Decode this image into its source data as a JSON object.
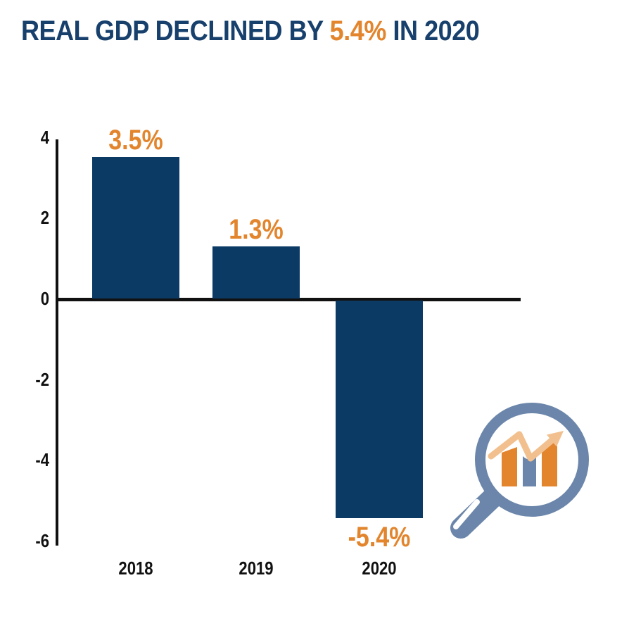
{
  "title": {
    "prefix": "REAL GDP DECLINED BY ",
    "highlight": "5.4%",
    "suffix": " IN 2020"
  },
  "chart_data": {
    "type": "bar",
    "title": "REAL GDP DECLINED BY 5.4% IN 2020",
    "categories": [
      "2018",
      "2019",
      "2020"
    ],
    "values": [
      3.5,
      1.3,
      -5.4
    ],
    "value_labels": [
      "3.5%",
      "1.3%",
      "-5.4%"
    ],
    "xlabel": "",
    "ylabel": "",
    "yticks": [
      4,
      2,
      0,
      -2,
      -4,
      -6
    ],
    "ylim": [
      -6,
      4
    ],
    "grid": false,
    "legend": false,
    "bar_color": "#0b3a64",
    "value_label_color": "#e2852d",
    "axis_color": "#111111"
  },
  "icon": {
    "name": "magnifier-trend-chart-icon",
    "ring_color": "#6b86aa",
    "bar_orange": "#e2852d",
    "bar_blue": "#6b86aa",
    "trend_line_color": "#f2c08e"
  },
  "colors": {
    "title_navy": "#17406c",
    "bar_navy": "#0b3a64",
    "orange": "#e2852d",
    "peach": "#f2c08e",
    "slate_blue": "#6b86aa",
    "axis_black": "#111111"
  }
}
